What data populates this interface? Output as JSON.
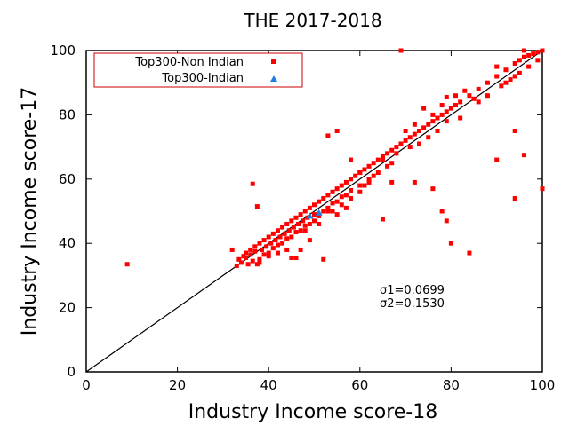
{
  "chart_data": {
    "type": "scatter",
    "title": "THE 2017-2018",
    "xlabel": "Industry Income score-18",
    "ylabel": "Industry Income score-17",
    "xlim": [
      0,
      100
    ],
    "ylim": [
      0,
      100
    ],
    "xticks": [
      "0",
      "20",
      "40",
      "60",
      "80",
      "100"
    ],
    "yticks": [
      "0",
      "20",
      "40",
      "60",
      "80",
      "100"
    ],
    "grid": false,
    "legend_position": "top-left",
    "reference_line": {
      "x": [
        0,
        100
      ],
      "y": [
        0,
        100
      ]
    },
    "annotations": [
      "σ1=0.0699",
      "σ2=0.1530"
    ],
    "series": [
      {
        "name": "Top300-Non Indian",
        "marker": "square",
        "color": "#ff0000",
        "points": [
          [
            9,
            33.5
          ],
          [
            32,
            38
          ],
          [
            33,
            33
          ],
          [
            33.5,
            35
          ],
          [
            34,
            34
          ],
          [
            34.5,
            36
          ],
          [
            35,
            35.5
          ],
          [
            35,
            37
          ],
          [
            35.5,
            33.5
          ],
          [
            36,
            36.5
          ],
          [
            36,
            38
          ],
          [
            36.5,
            34.5
          ],
          [
            37,
            37.5
          ],
          [
            37,
            39
          ],
          [
            37.5,
            33.5
          ],
          [
            38,
            40
          ],
          [
            38,
            35
          ],
          [
            38.5,
            38
          ],
          [
            39,
            36.5
          ],
          [
            39,
            41
          ],
          [
            39.5,
            39
          ],
          [
            40,
            37
          ],
          [
            40,
            42
          ],
          [
            40.5,
            40
          ],
          [
            41,
            38.5
          ],
          [
            41,
            43
          ],
          [
            41.5,
            41
          ],
          [
            42,
            39.5
          ],
          [
            42,
            44
          ],
          [
            42.5,
            42
          ],
          [
            43,
            40
          ],
          [
            43,
            45
          ],
          [
            43.5,
            43
          ],
          [
            44,
            41.5
          ],
          [
            44,
            46
          ],
          [
            44.5,
            44
          ],
          [
            45,
            42
          ],
          [
            45,
            47
          ],
          [
            45.5,
            45
          ],
          [
            46,
            43.5
          ],
          [
            46,
            48
          ],
          [
            46.5,
            46
          ],
          [
            47,
            44
          ],
          [
            47,
            49
          ],
          [
            47.5,
            47
          ],
          [
            48,
            45.5
          ],
          [
            48,
            50
          ],
          [
            48.5,
            48
          ],
          [
            49,
            46
          ],
          [
            49,
            51
          ],
          [
            50,
            52
          ],
          [
            50,
            47
          ],
          [
            51,
            53
          ],
          [
            51,
            48.5
          ],
          [
            52,
            54
          ],
          [
            52,
            50
          ],
          [
            53,
            55
          ],
          [
            53,
            51
          ],
          [
            54,
            56
          ],
          [
            54,
            52.5
          ],
          [
            55,
            57
          ],
          [
            55,
            53
          ],
          [
            56,
            58
          ],
          [
            56,
            54.5
          ],
          [
            57,
            59
          ],
          [
            57,
            55
          ],
          [
            58,
            60
          ],
          [
            58,
            56.5
          ],
          [
            59,
            61
          ],
          [
            60,
            62
          ],
          [
            60,
            58
          ],
          [
            61,
            63
          ],
          [
            62,
            64
          ],
          [
            62,
            60
          ],
          [
            63,
            65
          ],
          [
            64,
            66
          ],
          [
            65,
            67
          ],
          [
            66,
            68
          ],
          [
            67,
            69
          ],
          [
            68,
            70
          ],
          [
            69,
            71
          ],
          [
            70,
            72
          ],
          [
            71,
            73
          ],
          [
            72,
            74
          ],
          [
            73,
            75
          ],
          [
            74,
            76
          ],
          [
            75,
            77
          ],
          [
            76,
            78
          ],
          [
            77,
            79
          ],
          [
            78,
            80
          ],
          [
            79,
            81
          ],
          [
            80,
            82
          ],
          [
            81,
            83
          ],
          [
            82,
            84
          ],
          [
            84,
            86
          ],
          [
            86,
            88
          ],
          [
            88,
            90
          ],
          [
            90,
            92
          ],
          [
            92,
            94
          ],
          [
            94,
            96
          ],
          [
            95,
            97
          ],
          [
            96,
            98
          ],
          [
            97,
            98.5
          ],
          [
            98,
            99
          ],
          [
            99,
            99.5
          ],
          [
            100,
            100
          ],
          [
            36.5,
            58.5
          ],
          [
            37.5,
            51.5
          ],
          [
            45,
            35.5
          ],
          [
            46,
            35.5
          ],
          [
            47,
            38
          ],
          [
            49,
            41
          ],
          [
            52,
            35
          ],
          [
            53,
            73.5
          ],
          [
            55,
            75
          ],
          [
            58,
            66
          ],
          [
            65,
            47.5
          ],
          [
            67,
            59
          ],
          [
            69,
            100
          ],
          [
            72,
            59
          ],
          [
            76,
            57
          ],
          [
            78,
            50
          ],
          [
            79,
            47
          ],
          [
            80,
            40
          ],
          [
            84,
            37
          ],
          [
            90,
            66
          ],
          [
            94,
            75
          ],
          [
            94,
            54
          ],
          [
            96,
            67.5
          ],
          [
            100,
            57
          ],
          [
            81,
            86
          ],
          [
            83,
            87.5
          ],
          [
            79,
            85.5
          ],
          [
            85,
            85
          ],
          [
            92,
            90
          ],
          [
            94,
            92
          ],
          [
            90,
            95
          ],
          [
            96,
            100
          ],
          [
            78,
            83
          ],
          [
            76,
            80
          ],
          [
            74,
            82
          ],
          [
            72,
            77
          ],
          [
            70,
            75
          ],
          [
            68,
            68
          ],
          [
            66,
            64
          ],
          [
            64,
            62
          ],
          [
            62,
            59
          ],
          [
            60,
            56
          ],
          [
            58,
            54
          ],
          [
            56,
            52
          ],
          [
            54,
            50
          ],
          [
            50,
            49
          ],
          [
            48,
            44
          ],
          [
            44,
            38
          ],
          [
            42,
            37
          ],
          [
            40,
            36
          ],
          [
            38,
            34
          ],
          [
            60,
            62
          ],
          [
            57,
            51
          ],
          [
            55,
            49
          ],
          [
            53,
            50
          ],
          [
            51,
            46
          ],
          [
            61,
            58
          ],
          [
            63,
            61
          ],
          [
            65,
            66
          ],
          [
            67,
            65
          ],
          [
            71,
            70
          ],
          [
            73,
            71
          ],
          [
            75,
            73
          ],
          [
            77,
            75
          ],
          [
            79,
            78
          ],
          [
            82,
            79
          ],
          [
            86,
            84
          ],
          [
            88,
            86
          ],
          [
            91,
            89
          ],
          [
            93,
            91
          ],
          [
            95,
            93
          ],
          [
            97,
            95
          ],
          [
            99,
            97
          ]
        ]
      },
      {
        "name": "Top300-Indian",
        "marker": "triangle",
        "color": "#1e7fe0",
        "points": [
          [
            49,
            48.5
          ],
          [
            51,
            49.5
          ]
        ]
      }
    ]
  }
}
